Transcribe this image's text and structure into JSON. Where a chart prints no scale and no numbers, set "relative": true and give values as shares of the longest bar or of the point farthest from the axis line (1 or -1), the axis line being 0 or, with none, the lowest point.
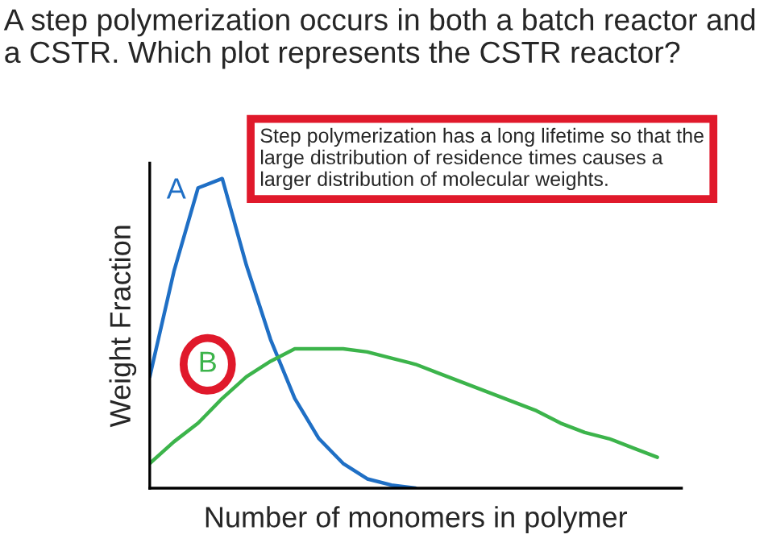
{
  "chart_data": {
    "type": "line",
    "title": "A step polymerization occurs in both a batch reactor and a CSTR. Which plot represents the CSTR reactor?",
    "xlabel": "Number of monomers in polymer",
    "ylabel": "Weight Fraction",
    "relative": true,
    "marker": "none",
    "line_style": "solid",
    "categories": [
      null,
      null,
      null,
      null,
      null,
      null,
      null,
      null,
      null,
      null,
      null,
      null,
      null,
      null,
      null,
      null,
      null,
      null,
      null,
      null,
      null,
      null
    ],
    "series": [
      {
        "name": "A",
        "color": "#1f6fc5",
        "values": [
          0.36,
          0.7,
          0.97,
          1.0,
          0.72,
          0.48,
          0.29,
          0.16,
          0.08,
          0.03,
          0.01,
          0.0,
          null,
          null,
          null,
          null,
          null,
          null,
          null,
          null,
          null,
          null
        ]
      },
      {
        "name": "B",
        "color": "#3cb44b",
        "values": [
          0.08,
          0.15,
          0.21,
          0.29,
          0.36,
          0.41,
          0.45,
          0.45,
          0.45,
          0.44,
          0.42,
          0.4,
          0.37,
          0.34,
          0.31,
          0.28,
          0.25,
          0.21,
          0.18,
          0.16,
          0.13,
          0.1
        ]
      }
    ],
    "annotations": [
      "Step polymerization has a long lifetime so that the large distribution of residence times causes a larger distribution of molecular weights."
    ]
  }
}
